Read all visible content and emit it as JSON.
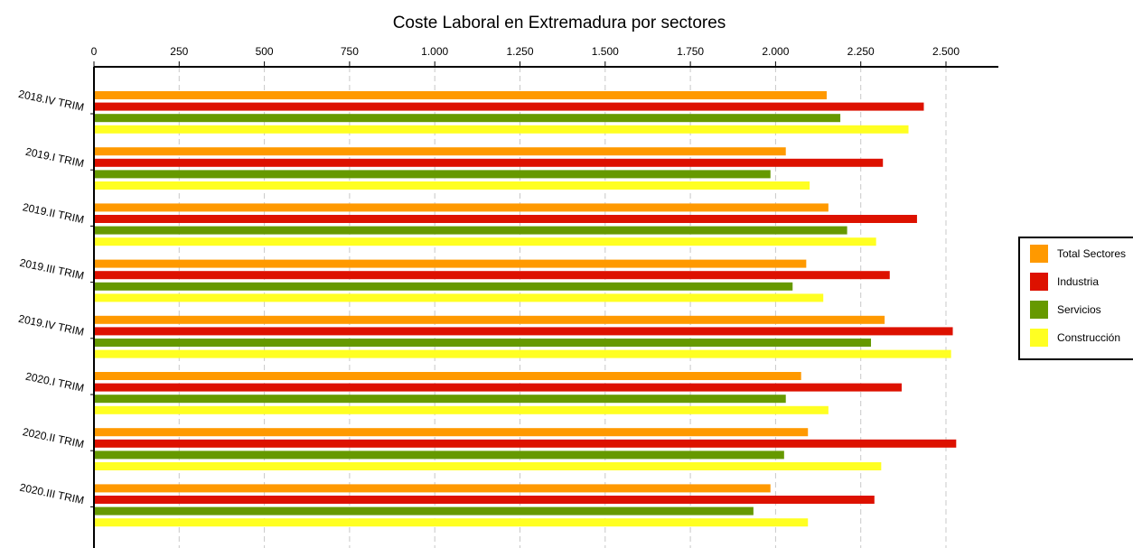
{
  "chart_data": {
    "type": "bar",
    "orientation": "horizontal",
    "title": "Coste Laboral en Extremadura por sectores",
    "xlabel": "",
    "ylabel": "",
    "xlim": [
      0,
      2650
    ],
    "x_ticks": [
      0,
      250,
      500,
      750,
      1000,
      1250,
      1500,
      1750,
      2000,
      2250,
      2500
    ],
    "x_tick_labels": [
      "0",
      "250",
      "500",
      "750",
      "1.000",
      "1.250",
      "1.500",
      "1.750",
      "2.000",
      "2.250",
      "2.500"
    ],
    "axis_position": "top",
    "grid": "vertical dashed",
    "legend_position": "right",
    "categories": [
      "2018.IV TRIM",
      "2019.I TRIM",
      "2019.II TRIM",
      "2019.III TRIM",
      "2019.IV TRIM",
      "2020.I TRIM",
      "2020.II TRIM",
      "2020.III TRIM"
    ],
    "series": [
      {
        "name": "Total Sectores",
        "color": "#ff9900",
        "values": [
          2150,
          2030,
          2155,
          2090,
          2320,
          2075,
          2095,
          1985
        ]
      },
      {
        "name": "Industria",
        "color": "#dd1100",
        "values": [
          2435,
          2315,
          2415,
          2335,
          2520,
          2370,
          2530,
          2290
        ]
      },
      {
        "name": "Servicios",
        "color": "#669900",
        "values": [
          2190,
          1985,
          2210,
          2050,
          2280,
          2030,
          2025,
          1935
        ]
      },
      {
        "name": "Construcción",
        "color": "#ffff22",
        "values": [
          2390,
          2100,
          2295,
          2140,
          2515,
          2155,
          2310,
          2095
        ]
      }
    ]
  }
}
